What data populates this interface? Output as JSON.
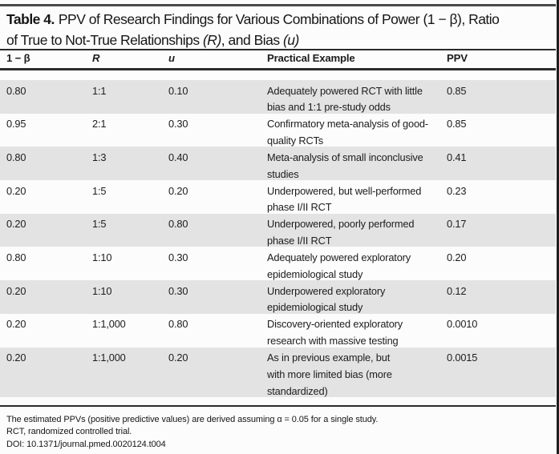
{
  "title": {
    "label": "Table 4.",
    "line1_rest": "PPV of Research Findings for Various Combinations of Power (1 − β), Ratio",
    "line2_pre": "of True to Not-True Relationships ",
    "line2_r": "(R)",
    "line2_mid": ", and Bias ",
    "line2_u": "(u)"
  },
  "table": {
    "headers": {
      "power": "1 − β",
      "r": "R",
      "u": "u",
      "example": "Practical Example",
      "ppv": "PPV"
    },
    "rows": [
      {
        "power": "0.80",
        "r": "1:1",
        "u": "0.10",
        "example": "Adequately powered RCT with little\nbias and 1:1 pre-study odds",
        "ppv": "0.85"
      },
      {
        "power": "0.95",
        "r": "2:1",
        "u": "0.30",
        "example": "Confirmatory meta-analysis of good-\nquality RCTs",
        "ppv": "0.85"
      },
      {
        "power": "0.80",
        "r": "1:3",
        "u": "0.40",
        "example": "Meta-analysis of small inconclusive\nstudies",
        "ppv": "0.41"
      },
      {
        "power": "0.20",
        "r": "1:5",
        "u": "0.20",
        "example": "Underpowered, but well-performed\nphase I/II RCT",
        "ppv": "0.23"
      },
      {
        "power": "0.20",
        "r": "1:5",
        "u": "0.80",
        "example": "Underpowered, poorly performed\nphase I/II RCT",
        "ppv": "0.17"
      },
      {
        "power": "0.80",
        "r": "1:10",
        "u": "0.30",
        "example": "Adequately powered exploratory\nepidemiological study",
        "ppv": "0.20"
      },
      {
        "power": "0.20",
        "r": "1:10",
        "u": "0.30",
        "example": "Underpowered exploratory\nepidemiological study",
        "ppv": "0.12"
      },
      {
        "power": "0.20",
        "r": "1:1,000",
        "u": "0.80",
        "example": "Discovery-oriented exploratory\nresearch with massive testing",
        "ppv": "0.0010"
      },
      {
        "power": "0.20",
        "r": "1:1,000",
        "u": "0.20",
        "example": "As in previous example, but\nwith more limited bias (more\nstandardized)",
        "ppv": "0.0015"
      }
    ]
  },
  "footnotes": {
    "line1": "The estimated PPVs (positive predictive values) are derived assuming α = 0.05 for a single study.",
    "line2": "RCT, randomized controlled trial.",
    "line3": "DOI: 10.1371/journal.pmed.0020124.t004"
  },
  "colors": {
    "row_shade": "#e3e3e3",
    "rule": "#2b2b2b",
    "text": "#1c1c1c"
  }
}
